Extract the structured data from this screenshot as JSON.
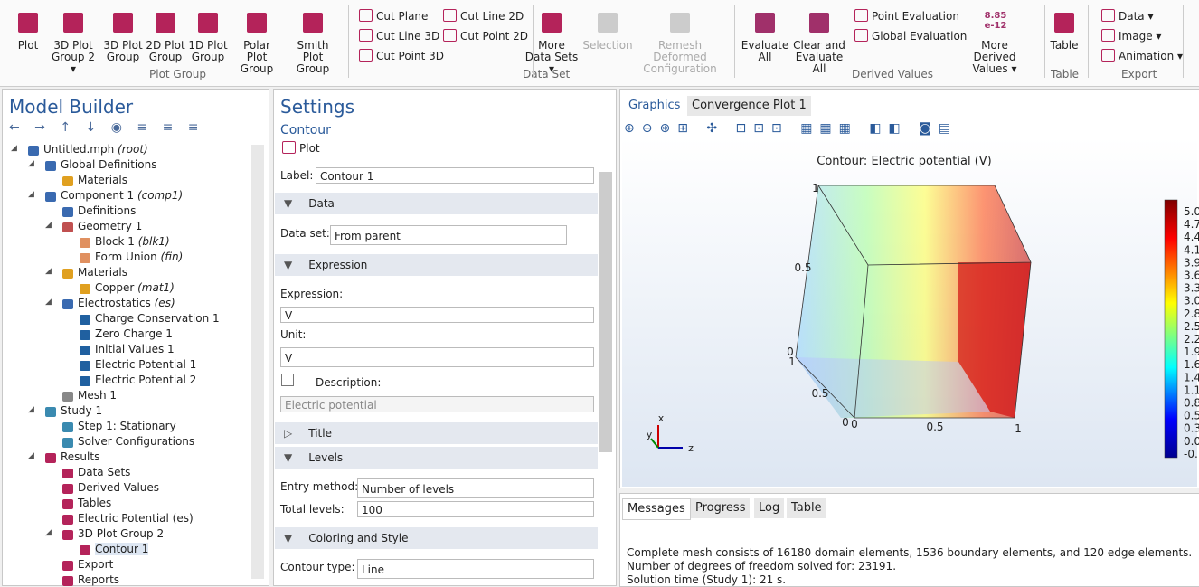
{
  "ribbon": {
    "plot_group": {
      "label": "Plot Group",
      "buttons": [
        "Plot",
        "3D Plot Group 2 ▾",
        "3D Plot Group",
        "2D Plot Group",
        "1D Plot Group",
        "Polar Plot Group",
        "Smith Plot Group"
      ]
    },
    "data_set": {
      "label": "Data Set",
      "small": [
        "Cut Plane",
        "Cut Line 3D",
        "Cut Point 3D",
        "Cut Line 2D",
        "Cut Point 2D"
      ],
      "buttons": [
        "More Data Sets ▾",
        "Selection",
        "Remesh Deformed Configuration"
      ]
    },
    "derived_values": {
      "label": "Derived Values",
      "buttons": [
        "Evaluate All",
        "Clear and Evaluate All",
        "More Derived Values ▾"
      ],
      "small": [
        "Point Evaluation",
        "Global Evaluation"
      ],
      "icon_text": "8.85 e-12"
    },
    "table": {
      "label": "Table",
      "buttons": [
        "Table"
      ]
    },
    "export": {
      "label": "Export",
      "small": [
        "Data ▾",
        "Image ▾",
        "Animation ▾"
      ]
    }
  },
  "model_builder": {
    "title": "Model Builder",
    "tree": [
      {
        "label": "Untitled.mph",
        "tag": "(root)"
      },
      {
        "label": "Global Definitions"
      },
      {
        "label": "Materials"
      },
      {
        "label": "Component 1",
        "tag": "(comp1)"
      },
      {
        "label": "Definitions"
      },
      {
        "label": "Geometry 1"
      },
      {
        "label": "Block 1",
        "tag": "(blk1)"
      },
      {
        "label": "Form Union",
        "tag": "(fin)"
      },
      {
        "label": "Materials"
      },
      {
        "label": "Copper",
        "tag": "(mat1)"
      },
      {
        "label": "Electrostatics",
        "tag": "(es)"
      },
      {
        "label": "Charge Conservation 1"
      },
      {
        "label": "Zero Charge 1"
      },
      {
        "label": "Initial Values 1"
      },
      {
        "label": "Electric Potential 1"
      },
      {
        "label": "Electric Potential 2"
      },
      {
        "label": "Mesh 1"
      },
      {
        "label": "Study 1"
      },
      {
        "label": "Step 1: Stationary"
      },
      {
        "label": "Solver Configurations"
      },
      {
        "label": "Results"
      },
      {
        "label": "Data Sets"
      },
      {
        "label": "Derived Values"
      },
      {
        "label": "Tables"
      },
      {
        "label": "Electric Potential (es)"
      },
      {
        "label": "3D Plot Group 2"
      },
      {
        "label": "Contour 1"
      },
      {
        "label": "Export"
      },
      {
        "label": "Reports"
      }
    ]
  },
  "settings": {
    "title": "Settings",
    "subtitle": "Contour",
    "plot_button": "Plot",
    "label_field": {
      "label": "Label:",
      "value": "Contour 1"
    },
    "sections": [
      "Data",
      "Expression",
      "Title",
      "Levels",
      "Coloring and Style"
    ],
    "data_set": {
      "label": "Data set:",
      "value": "From parent"
    },
    "expression": {
      "label": "Expression:",
      "value": "V"
    },
    "unit": {
      "label": "Unit:",
      "value": "V"
    },
    "description": {
      "label": "Description:",
      "value": "Electric potential"
    },
    "entry_method": {
      "label": "Entry method:",
      "value": "Number of levels"
    },
    "total_levels": {
      "label": "Total levels:",
      "value": "100"
    },
    "contour_type": {
      "label": "Contour type:",
      "value": "Line"
    }
  },
  "graphics": {
    "tabs": [
      "Graphics",
      "Convergence Plot 1"
    ],
    "plot_title": "Contour: Electric potential (V)",
    "axis_labels": [
      "1",
      "0.5",
      "0",
      "1",
      "0.5",
      "0",
      "0",
      "0.5",
      "1"
    ],
    "triad": [
      "x",
      "y",
      "z"
    ],
    "colorbar_labels": [
      "5.0",
      "4.7",
      "4.4",
      "4.1",
      "3.9",
      "3.6",
      "3.3",
      "3.0",
      "2.8",
      "2.5",
      "2.2",
      "1.9",
      "1.6",
      "1.4",
      "1.1",
      "0.8",
      "0.5",
      "0.3",
      "0.0",
      "-0."
    ]
  },
  "messages": {
    "tabs": [
      "Messages",
      "Progress",
      "Log",
      "Table"
    ],
    "lines": [
      "Complete mesh consists of 16180 domain elements, 1536 boundary elements, and 120 edge elements.",
      "Number of degrees of freedom solved for: 23191.",
      "Solution time (Study 1): 21 s."
    ]
  }
}
